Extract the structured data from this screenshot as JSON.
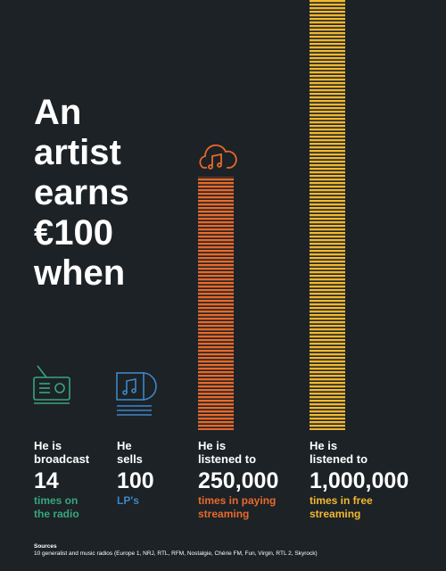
{
  "title": [
    "An",
    "artist",
    "earns",
    "€100",
    "when"
  ],
  "items": [
    {
      "label_top": [
        "He is",
        "broadcast"
      ],
      "number": "14",
      "label_bottom": [
        "times on",
        "the radio"
      ]
    },
    {
      "label_top": [
        "He",
        "sells"
      ],
      "number": "100",
      "label_bottom": [
        "LP's"
      ]
    },
    {
      "label_top": [
        "He is",
        "listened to"
      ],
      "number": "250,000",
      "label_bottom": [
        "times in paying",
        "streaming"
      ]
    },
    {
      "label_top": [
        "He is",
        "listened to"
      ],
      "number": "1,000,000",
      "label_bottom": [
        "times in free",
        "streaming"
      ]
    }
  ],
  "sources": {
    "title": "Sources",
    "text": "10 generalist and music radios (Europe 1, NRJ, RTL, RFM, Nostalgie, Chérie FM, Fun, Virgin, RTL 2, Skyrock)"
  }
}
